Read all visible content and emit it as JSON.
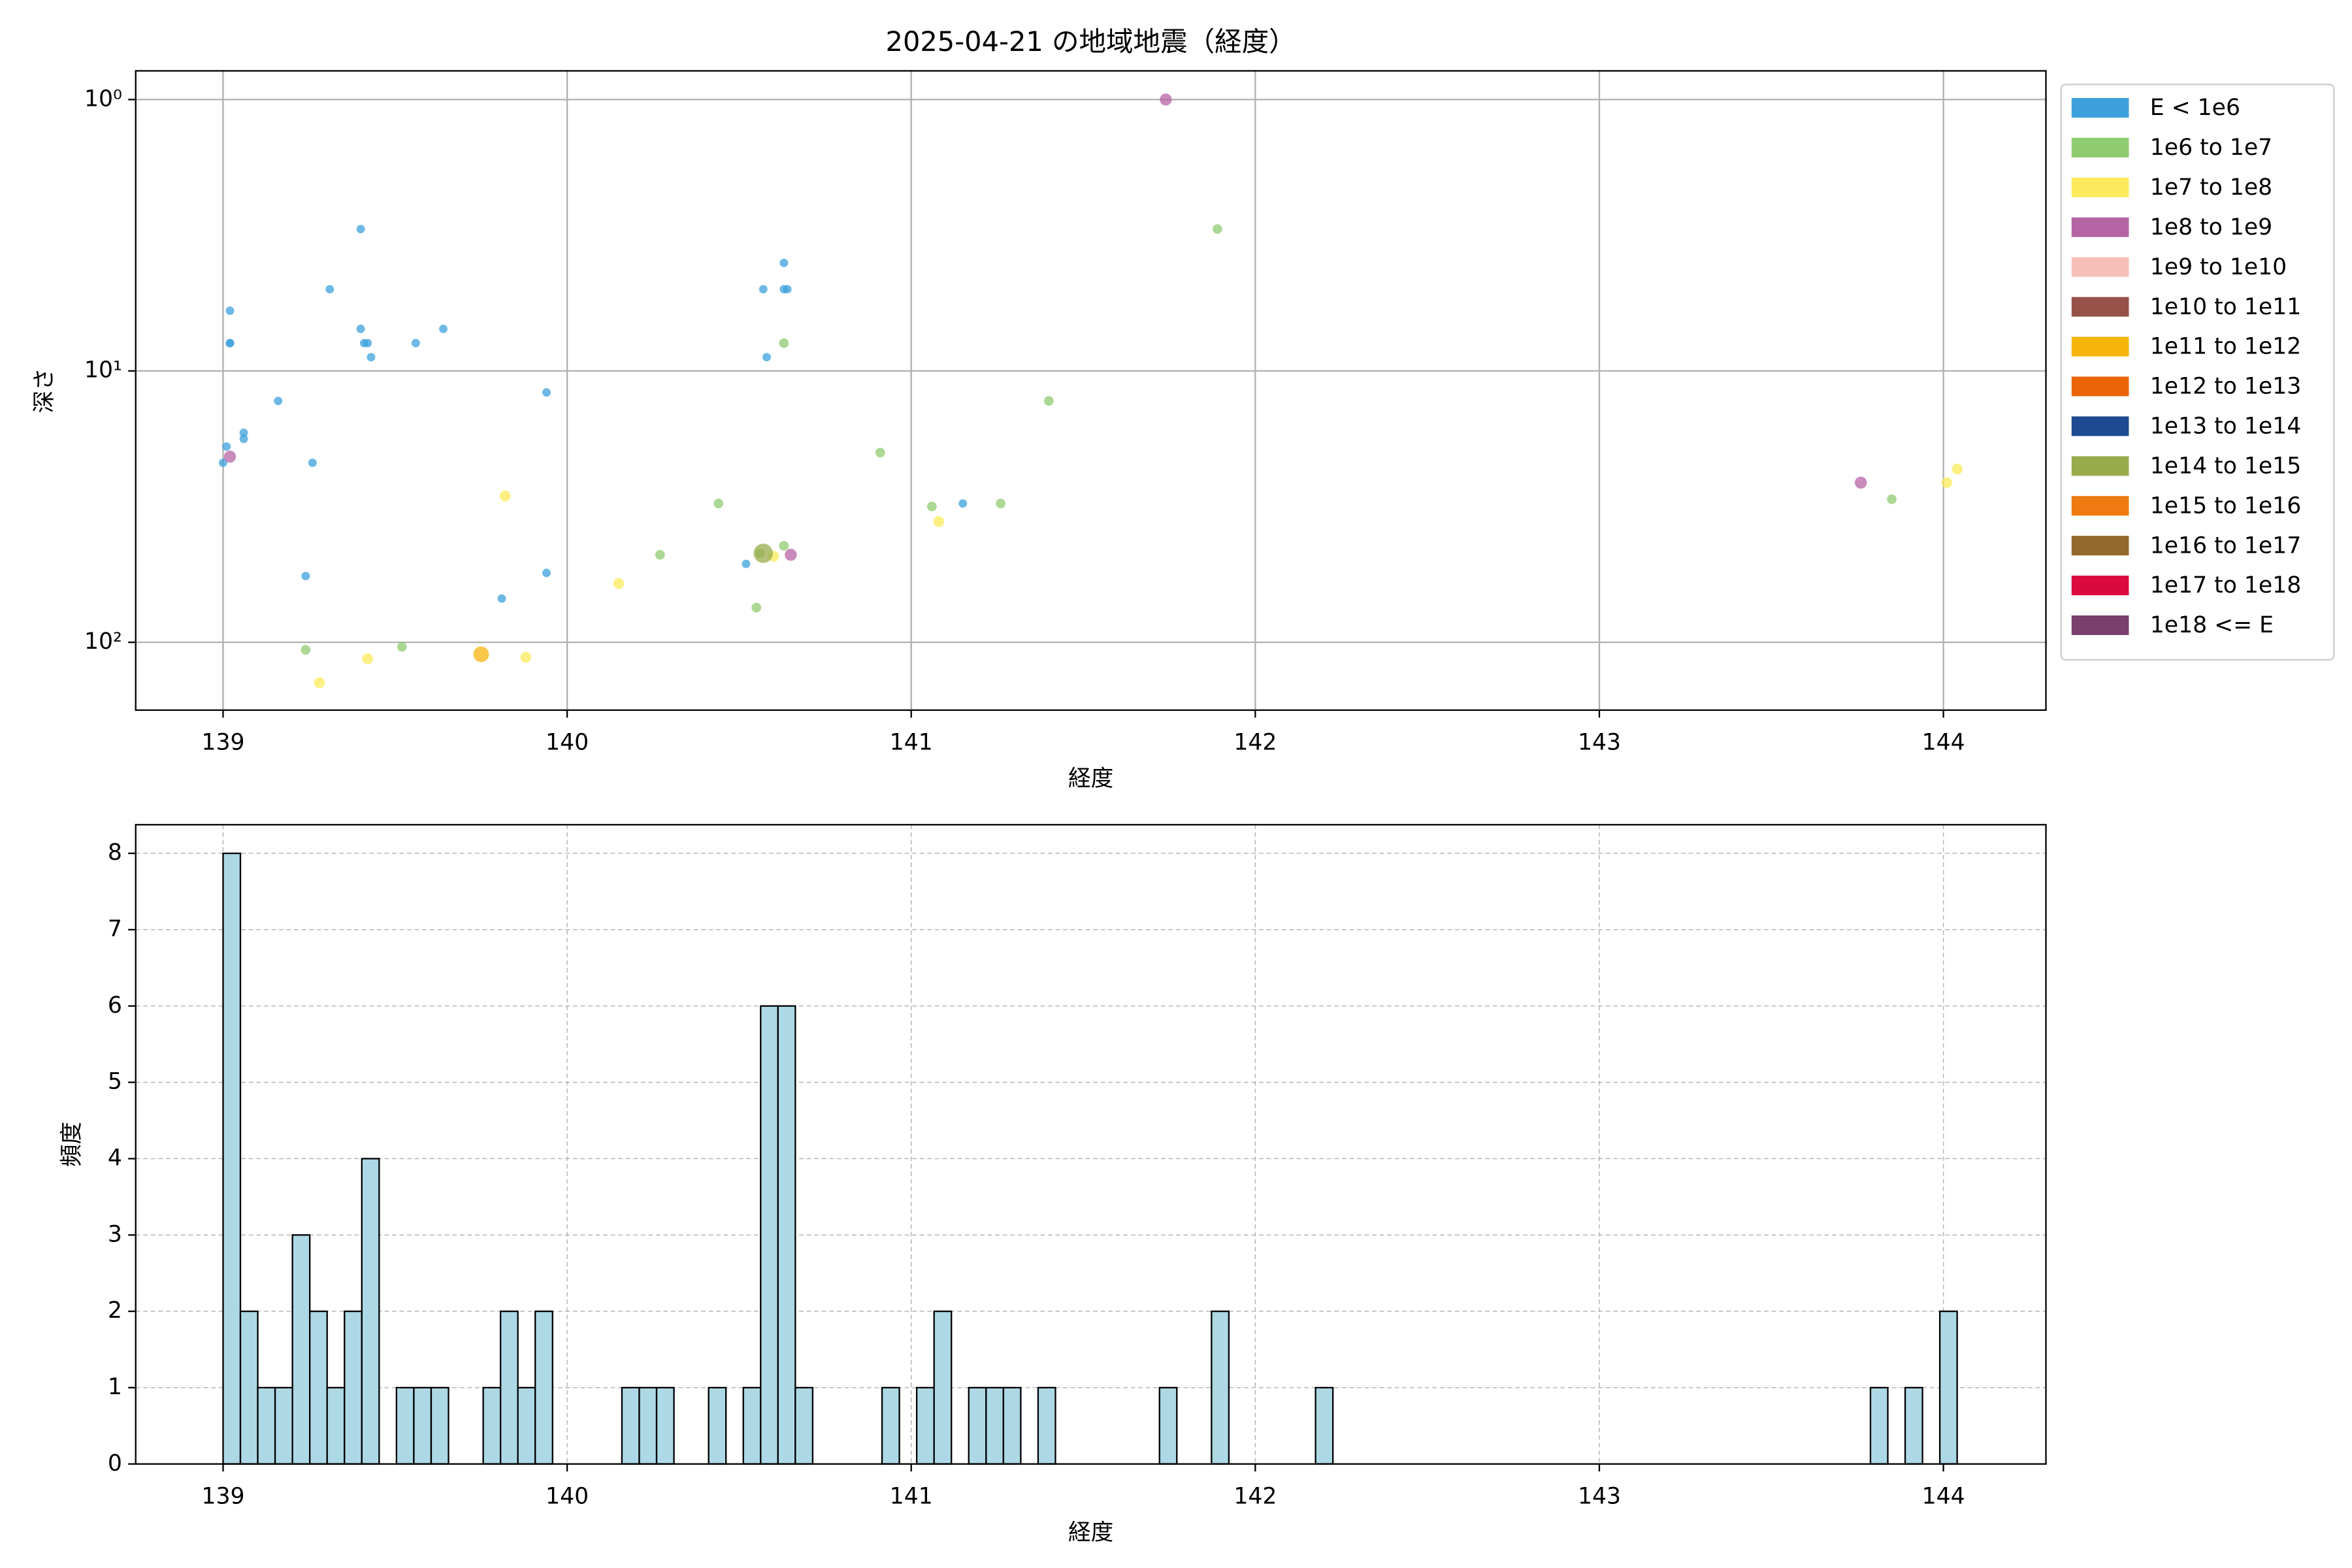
{
  "chart_data": [
    {
      "type": "scatter",
      "title": "2025-04-21 の地域地震（経度）",
      "xlabel": "経度",
      "ylabel": "深さ",
      "xlim": [
        138.746,
        144.298
      ],
      "xticks": [
        139,
        140,
        141,
        142,
        143,
        144
      ],
      "ylog": true,
      "ylim": [
        177.8,
        0.784
      ],
      "yticks": [
        {
          "value": 1,
          "label": "10⁰"
        },
        {
          "value": 10,
          "label": "10¹"
        },
        {
          "value": 100,
          "label": "10²"
        }
      ],
      "grid": true,
      "legend": "outside-right",
      "series": [
        {
          "name": "E < 1e6",
          "color": "#3ca0dc",
          "x": [
            139.02,
            139.02,
            139.02,
            139.01,
            139.06,
            139.06,
            139.0,
            139.16,
            139.24,
            139.26,
            139.31,
            139.4,
            139.4,
            139.41,
            139.42,
            139.43,
            139.56,
            139.64,
            139.81,
            139.94,
            139.94,
            140.52,
            140.57,
            140.58,
            140.63,
            140.63,
            140.64,
            141.15
          ],
          "y": [
            6.0,
            7.9,
            7.9,
            19.0,
            16.9,
            17.8,
            21.8,
            12.9,
            57,
            21.8,
            5.0,
            3.0,
            7.0,
            7.9,
            7.9,
            8.9,
            7.9,
            7.0,
            69,
            12.0,
            55.5,
            51.4,
            5.0,
            8.9,
            4.0,
            5.0,
            5.0,
            30.8
          ]
        },
        {
          "name": "1e6 to 1e7",
          "color": "#8fcb70",
          "x": [
            139.24,
            139.52,
            140.27,
            140.44,
            140.55,
            140.56,
            140.63,
            140.63,
            140.91,
            141.06,
            141.26,
            141.4,
            141.89,
            143.85
          ],
          "y": [
            106.6,
            104,
            47.6,
            30.8,
            74.5,
            47,
            44.1,
            7.9,
            20,
            31.6,
            30.8,
            12.9,
            3.0,
            29.7
          ]
        },
        {
          "name": "1e7 to 1e8",
          "color": "#fbeb5c",
          "x": [
            139.28,
            139.42,
            139.82,
            139.88,
            140.15,
            140.6,
            141.08,
            144.01,
            144.04
          ],
          "y": [
            141,
            115,
            28.9,
            113.6,
            60.7,
            48.2,
            35.9,
            25.8,
            23
          ]
        },
        {
          "name": "1e8 to 1e9",
          "color": "#b564a6",
          "x": [
            139.02,
            140.65,
            141.74,
            143.76
          ],
          "y": [
            20.7,
            47.6,
            1.0,
            25.8
          ]
        },
        {
          "name": "1e9 to 1e10",
          "color": "#f6c0b8",
          "x": [],
          "y": []
        },
        {
          "name": "1e10 to 1e11",
          "color": "#975149",
          "x": [],
          "y": []
        },
        {
          "name": "1e11 to 1e12",
          "color": "#f5b40c",
          "x": [
            139.75
          ],
          "y": [
            110.7
          ]
        },
        {
          "name": "1e12 to 1e13",
          "color": "#ec6408",
          "x": [],
          "y": []
        },
        {
          "name": "1e13 to 1e14",
          "color": "#1d4a90",
          "x": [],
          "y": []
        },
        {
          "name": "1e14 to 1e15",
          "color": "#9aab4c",
          "x": [
            140.57
          ],
          "y": [
            47
          ]
        },
        {
          "name": "1e15 to 1e16",
          "color": "#ef7a11",
          "x": [],
          "y": []
        },
        {
          "name": "1e16 to 1e17",
          "color": "#936a2c",
          "x": [],
          "y": []
        },
        {
          "name": "1e17 to 1e18",
          "color": "#db0a3c",
          "x": [],
          "y": []
        },
        {
          "name": "1e18 <= E",
          "color": "#7b3f6e",
          "x": [],
          "y": []
        }
      ]
    },
    {
      "type": "histogram",
      "xlabel": "経度",
      "ylabel": "頻度",
      "xlim": [
        138.746,
        144.298
      ],
      "xticks": [
        139,
        140,
        141,
        142,
        143,
        144
      ],
      "ylim": [
        0,
        8.375
      ],
      "yticks": [
        0,
        1,
        2,
        3,
        4,
        5,
        6,
        7,
        8
      ],
      "grid": "dashed",
      "color": "#add8e6",
      "edgecolor": "#000000",
      "bins": [
        139.0,
        139.0504,
        139.1008,
        139.1512,
        139.2016,
        139.252,
        139.3024,
        139.3528,
        139.4032,
        139.4536,
        139.504,
        139.5544,
        139.6048,
        139.6552,
        139.7056,
        139.756,
        139.8064,
        139.8568,
        139.9072,
        139.9576,
        140.008,
        140.0584,
        140.1088,
        140.1592,
        140.2096,
        140.26,
        140.3104,
        140.3608,
        140.4112,
        140.4616,
        140.512,
        140.5624,
        140.6128,
        140.6632,
        140.7136,
        140.764,
        140.8144,
        140.8648,
        140.9152,
        140.9656,
        141.016,
        141.0664,
        141.1168,
        141.1672,
        141.2176,
        141.268,
        141.3184,
        141.3688,
        141.4192,
        141.4696,
        141.52,
        141.5704,
        141.6208,
        141.6712,
        141.7216,
        141.772,
        141.8224,
        141.8728,
        141.9232,
        141.9736,
        142.024,
        142.0744,
        142.1248,
        142.1752,
        142.2256,
        142.276,
        142.3264,
        142.3768,
        142.4272,
        142.4776,
        142.528,
        142.5784,
        142.6288,
        142.6792,
        142.7296,
        142.78,
        142.8304,
        142.8808,
        142.9312,
        142.9816,
        143.032,
        143.0824,
        143.1328,
        143.1832,
        143.2336,
        143.284,
        143.3344,
        143.3848,
        143.4352,
        143.4856,
        143.536,
        143.5864,
        143.6368,
        143.6872,
        143.7376,
        143.788,
        143.8384,
        143.8888,
        143.9392,
        143.9896,
        144.04
      ],
      "counts": [
        8,
        2,
        1,
        1,
        3,
        2,
        1,
        2,
        4,
        0,
        1,
        1,
        1,
        0,
        0,
        1,
        2,
        1,
        2,
        0,
        0,
        0,
        0,
        1,
        1,
        1,
        0,
        0,
        1,
        0,
        1,
        6,
        6,
        1,
        0,
        0,
        0,
        0,
        1,
        0,
        1,
        2,
        0,
        1,
        1,
        1,
        0,
        1,
        0,
        0,
        0,
        0,
        0,
        0,
        1,
        0,
        0,
        2,
        0,
        0,
        0,
        0,
        0,
        1,
        0,
        0,
        0,
        0,
        0,
        0,
        0,
        0,
        0,
        0,
        0,
        0,
        0,
        0,
        0,
        0,
        0,
        0,
        0,
        0,
        0,
        0,
        0,
        0,
        0,
        0,
        0,
        0,
        0,
        0,
        0,
        1,
        0,
        1,
        0,
        2
      ]
    }
  ]
}
